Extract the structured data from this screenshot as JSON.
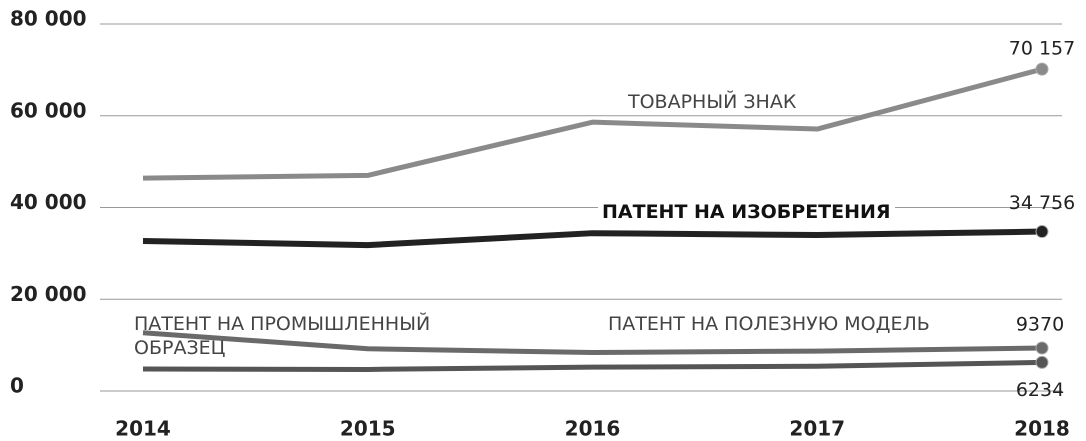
{
  "chart_data": {
    "type": "line",
    "categories": [
      "2014",
      "2015",
      "2016",
      "2017",
      "2018"
    ],
    "series": [
      {
        "name": "ТОВАРНЫЙ ЗНАК",
        "color": "#8a8a8a",
        "values": [
          46400,
          47000,
          58600,
          57100,
          70157
        ],
        "value_labels": [
          null,
          null,
          null,
          null,
          "70 157"
        ]
      },
      {
        "name": "ПАТЕНТ НА ИЗОБРЕТЕНИЯ",
        "color": "#222222",
        "values": [
          32700,
          31800,
          34400,
          34000,
          34756
        ],
        "value_labels": [
          null,
          null,
          null,
          null,
          "34 756"
        ]
      },
      {
        "name": "ПАТЕНТ НА ПОЛЕЗНУЮ МОДЕЛЬ",
        "color": "#6a6a6a",
        "values": [
          12700,
          9200,
          8400,
          8700,
          9370
        ],
        "value_labels": [
          null,
          null,
          null,
          null,
          "9370"
        ]
      },
      {
        "name": "ПАТЕНТ НА ПРОМЫШЛЕННЫЙ ОБРАЗЕЦ",
        "color": "#555555",
        "values": [
          4800,
          4700,
          5200,
          5400,
          6234
        ],
        "value_labels": [
          null,
          null,
          null,
          null,
          "6234"
        ]
      }
    ],
    "ylim": [
      0,
      80000
    ],
    "yticks": [
      0,
      {
        "value": 20000,
        "label": "20 000"
      },
      {
        "value": 40000,
        "label": "40 000"
      },
      {
        "value": 60000,
        "label": "60 000"
      },
      {
        "value": 80000,
        "label": "80 000"
      }
    ],
    "grid": true
  }
}
